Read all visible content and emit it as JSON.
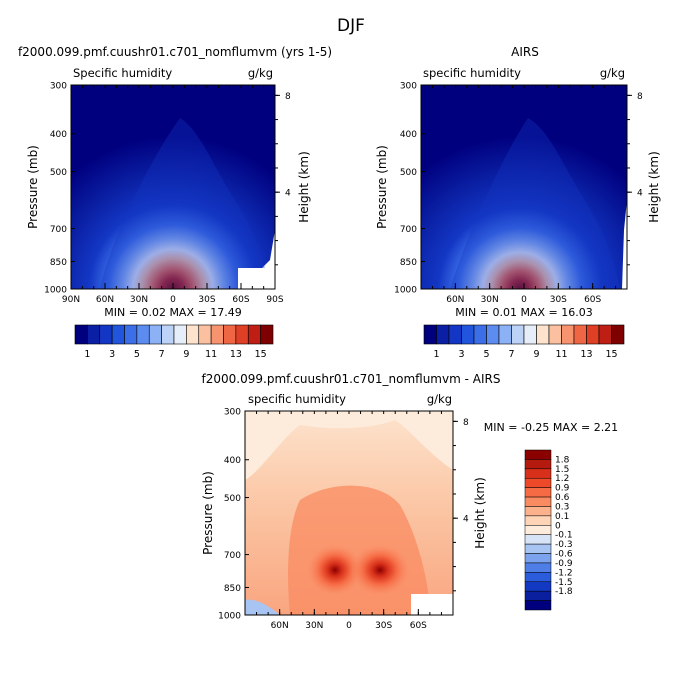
{
  "figure": {
    "title": "DJF"
  },
  "chart_data": [
    {
      "type": "heatmap",
      "panel_title": "f2000.099.pmf.cuushr01.c701_nomflumvm (yrs 1-5)",
      "title_left": "Specific humidity",
      "title_right": "g/kg",
      "ylabel": "Pressure (mb)",
      "y2label": "Height (km)",
      "x_ticks": [
        "90N",
        "60N",
        "30N",
        "0",
        "30S",
        "60S",
        "90S"
      ],
      "y_ticks": [
        "300",
        "400",
        "500",
        "700",
        "850",
        "1000"
      ],
      "y2_ticks": [
        "8",
        "4"
      ],
      "ylim": [
        1000,
        300
      ],
      "field": {
        "peak": 17.49,
        "center_lat": 0,
        "min": 0.02,
        "max": 17.49
      },
      "stats": "MIN =    0.02   MAX =   17.49",
      "colorbar": {
        "levels": [
          "1",
          "3",
          "5",
          "7",
          "9",
          "11",
          "13",
          "15"
        ],
        "colors": [
          "#00007f",
          "#0a1fa3",
          "#1337c4",
          "#2255dd",
          "#3c6ee8",
          "#5d8cf0",
          "#8cb2f5",
          "#bcd2f7",
          "#e6eefa",
          "#fde3cd",
          "#fbc0a0",
          "#f7946f",
          "#ef6645",
          "#df3f24",
          "#bf1e14",
          "#7f0000"
        ]
      }
    },
    {
      "type": "heatmap",
      "panel_title": "AIRS",
      "title_left": "specific humidity",
      "title_right": "g/kg",
      "ylabel": "Pressure (mb)",
      "y2label": "Height (km)",
      "x_ticks": [
        "60N",
        "30N",
        "0",
        "30S",
        "60S"
      ],
      "y_ticks": [
        "300",
        "400",
        "500",
        "700",
        "850",
        "1000"
      ],
      "y2_ticks": [
        "8",
        "4"
      ],
      "ylim": [
        1000,
        300
      ],
      "field": {
        "peak": 16.03,
        "center_lat": 0,
        "min": 0.01,
        "max": 16.03
      },
      "stats": "MIN =    0.01   MAX =   16.03",
      "colorbar": {
        "levels": [
          "1",
          "3",
          "5",
          "7",
          "9",
          "11",
          "13",
          "15"
        ],
        "colors": [
          "#00007f",
          "#0a1fa3",
          "#1337c4",
          "#2255dd",
          "#3c6ee8",
          "#5d8cf0",
          "#8cb2f5",
          "#bcd2f7",
          "#e6eefa",
          "#fde3cd",
          "#fbc0a0",
          "#f7946f",
          "#ef6645",
          "#df3f24",
          "#bf1e14",
          "#7f0000"
        ]
      }
    },
    {
      "type": "heatmap",
      "panel_title": "f2000.099.pmf.cuushr01.c701_nomflumvm - AIRS",
      "title_left": "specific humidity",
      "title_right": "g/kg",
      "ylabel": "Pressure (mb)",
      "y2label": "Height (km)",
      "x_ticks": [
        "60N",
        "30N",
        "0",
        "30S",
        "60S"
      ],
      "y_ticks": [
        "300",
        "400",
        "500",
        "700",
        "850",
        "1000"
      ],
      "y2_ticks": [
        "8",
        "4"
      ],
      "ylim": [
        1000,
        300
      ],
      "field": {
        "min": -0.25,
        "max": 2.21
      },
      "stats": "MIN =   -0.25   MAX =    2.21",
      "colorbar": {
        "levels": [
          "1.8",
          "1.5",
          "1.2",
          "0.9",
          "0.6",
          "0.3",
          "0.1",
          "0",
          "-0.1",
          "-0.3",
          "-0.6",
          "-0.9",
          "-1.2",
          "-1.5",
          "-1.8"
        ],
        "colors": [
          "#8b0000",
          "#b41a0e",
          "#d8301a",
          "#ee4a2a",
          "#f66a44",
          "#f98b62",
          "#fbb18c",
          "#fdd4b6",
          "#fdebdb",
          "#d7e4f7",
          "#a7c4f2",
          "#7ca4ee",
          "#4f7fe6",
          "#2a5cdc",
          "#1339c2",
          "#0a1f9e",
          "#00007f"
        ]
      }
    }
  ]
}
